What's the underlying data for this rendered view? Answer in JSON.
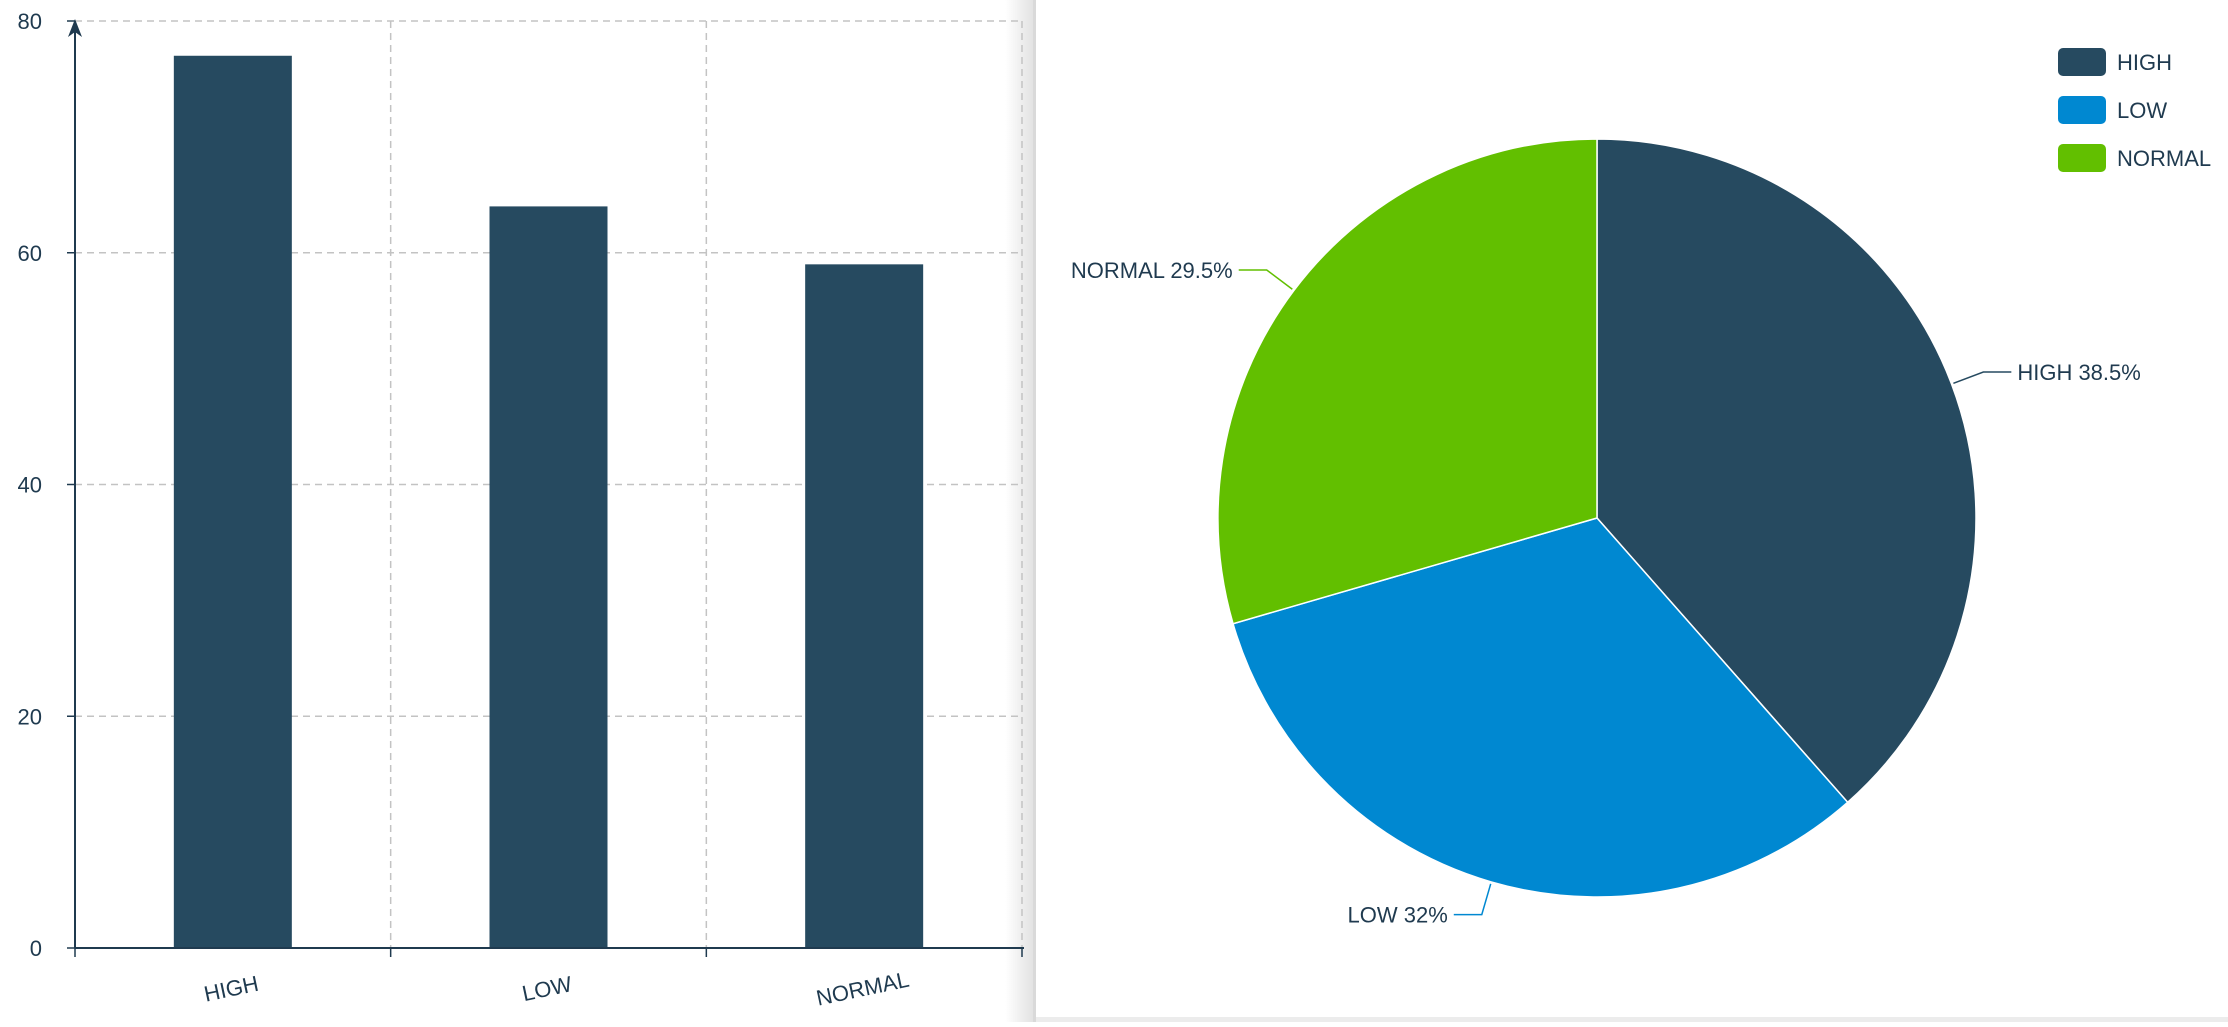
{
  "colors": {
    "high": "#264a60",
    "low": "#0088d1",
    "normal": "#62bf00",
    "axis": "#1f3a4f",
    "grid": "#c3c3c3",
    "text": "#1f3a4f"
  },
  "chart_data": [
    {
      "type": "bar",
      "categories": [
        "HIGH",
        "LOW",
        "NORMAL"
      ],
      "values": [
        77,
        64,
        59
      ],
      "ylim": [
        0,
        80
      ],
      "yticks": [
        "0",
        "20",
        "40",
        "60",
        "80"
      ],
      "grid": true,
      "bar_color": "#264a60"
    },
    {
      "type": "pie",
      "labels": [
        "HIGH",
        "LOW",
        "NORMAL"
      ],
      "values": [
        77,
        64,
        59
      ],
      "slice_labels": [
        "HIGH 38.5%",
        "LOW 32%",
        "NORMAL 29.5%"
      ],
      "colors": [
        "#264a60",
        "#0088d1",
        "#62bf00"
      ],
      "legend": {
        "position": "top-right",
        "entries": [
          "HIGH",
          "LOW",
          "NORMAL"
        ]
      }
    }
  ]
}
